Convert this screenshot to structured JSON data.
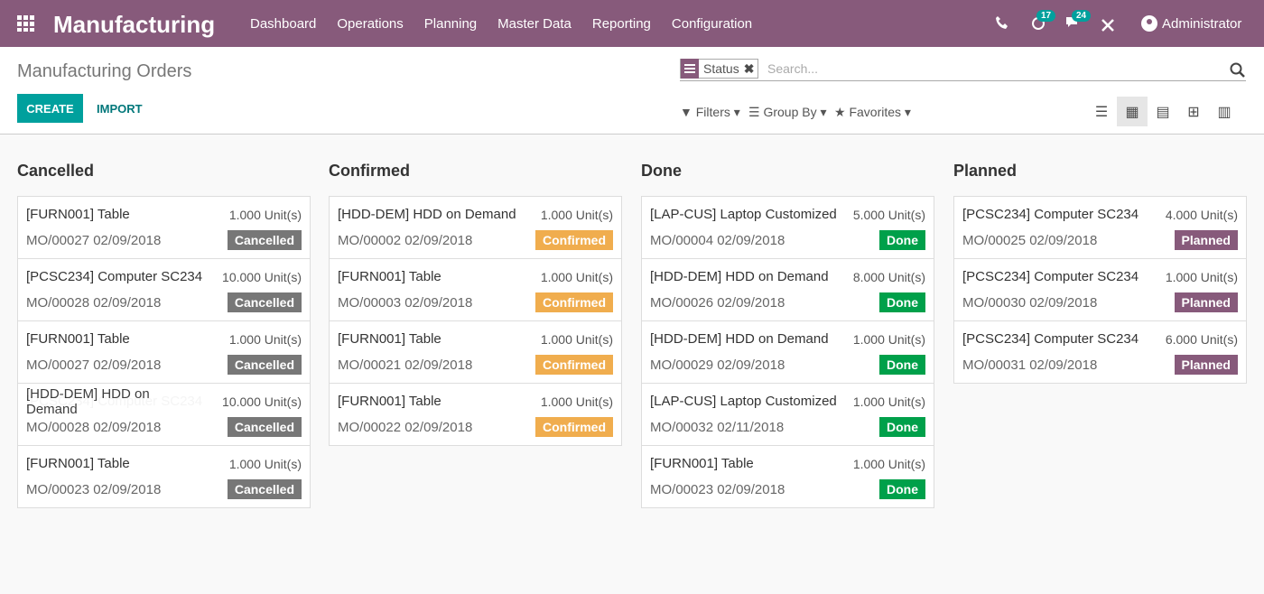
{
  "header": {
    "brand": "Manufacturing",
    "menu": [
      "Dashboard",
      "Operations",
      "Planning",
      "Master Data",
      "Reporting",
      "Configuration"
    ],
    "activity_count": 17,
    "message_count": 24,
    "user": "Administrator"
  },
  "control": {
    "title": "Manufacturing Orders",
    "facet": "Status",
    "search_placeholder": "Search...",
    "create": "CREATE",
    "import": "IMPORT",
    "filters": "Filters",
    "group_by": "Group By",
    "favorites": "Favorites"
  },
  "columns": [
    {
      "title": "Cancelled",
      "cards": [
        {
          "product": "[FURN001] Table",
          "qty": "1.000",
          "uom": "Unit(s)",
          "ref": "MO/00027",
          "date": "02/09/2018",
          "status": "Cancelled"
        },
        {
          "product": "[PCSC234] Computer SC234",
          "qty": "10.000",
          "uom": "Unit(s)",
          "ref": "MO/00028",
          "date": "02/09/2018",
          "status": "Cancelled"
        },
        {
          "product": "[FURN001] Table",
          "qty": "1.000",
          "uom": "Unit(s)",
          "ref": "MO/00027",
          "date": "02/09/2018",
          "status": "Cancelled"
        },
        {
          "product": "[PCSC234] Computer SC234",
          "qty": "10.000",
          "uom": "Unit(s)",
          "ref": "MO/00028",
          "date": "02/09/2018",
          "status": "Cancelled"
        },
        {
          "product": "[FURN001] Table",
          "qty": "1.000",
          "uom": "Unit(s)",
          "ref": "MO/00023",
          "date": "02/09/2018",
          "status": "Cancelled"
        }
      ]
    },
    {
      "title": "Confirmed",
      "cards": [
        {
          "product": "[HDD-DEM] HDD on Demand",
          "qty": "1.000",
          "uom": "Unit(s)",
          "ref": "MO/00002",
          "date": "02/09/2018",
          "status": "Confirmed"
        },
        {
          "product": "[FURN001] Table",
          "qty": "1.000",
          "uom": "Unit(s)",
          "ref": "MO/00003",
          "date": "02/09/2018",
          "status": "Confirmed"
        },
        {
          "product": "[FURN001] Table",
          "qty": "1.000",
          "uom": "Unit(s)",
          "ref": "MO/00021",
          "date": "02/09/2018",
          "status": "Confirmed"
        },
        {
          "product": "[FURN001] Table",
          "qty": "1.000",
          "uom": "Unit(s)",
          "ref": "MO/00022",
          "date": "02/09/2018",
          "status": "Confirmed"
        }
      ]
    },
    {
      "title": "Done",
      "cards": [
        {
          "product": "[LAP-CUS] Laptop Customized",
          "qty": "5.000",
          "uom": "Unit(s)",
          "ref": "MO/00004",
          "date": "02/09/2018",
          "status": "Done"
        },
        {
          "product": "[HDD-DEM] HDD on Demand",
          "qty": "8.000",
          "uom": "Unit(s)",
          "ref": "MO/00026",
          "date": "02/09/2018",
          "status": "Done"
        },
        {
          "product": "[HDD-DEM] HDD on Demand",
          "qty": "1.000",
          "uom": "Unit(s)",
          "ref": "MO/00029",
          "date": "02/09/2018",
          "status": "Done"
        },
        {
          "product": "[LAP-CUS] Laptop Customized",
          "qty": "1.000",
          "uom": "Unit(s)",
          "ref": "MO/00032",
          "date": "02/11/2018",
          "status": "Done"
        },
        {
          "product": "[FURN001] Table",
          "qty": "1.000",
          "uom": "Unit(s)",
          "ref": "MO/00023",
          "date": "02/09/2018",
          "status": "Done"
        }
      ]
    },
    {
      "title": "Planned",
      "cards": [
        {
          "product": "[PCSC234] Computer SC234",
          "qty": "4.000",
          "uom": "Unit(s)",
          "ref": "MO/00025",
          "date": "02/09/2018",
          "status": "Planned"
        },
        {
          "product": "[PCSC234] Computer SC234",
          "qty": "1.000",
          "uom": "Unit(s)",
          "ref": "MO/00030",
          "date": "02/09/2018",
          "status": "Planned"
        },
        {
          "product": "[PCSC234] Computer SC234",
          "qty": "6.000",
          "uom": "Unit(s)",
          "ref": "MO/00031",
          "date": "02/09/2018",
          "status": "Planned"
        }
      ]
    }
  ],
  "drag_ghost": {
    "product": "[HDD-DEM] HDD on Demand"
  }
}
